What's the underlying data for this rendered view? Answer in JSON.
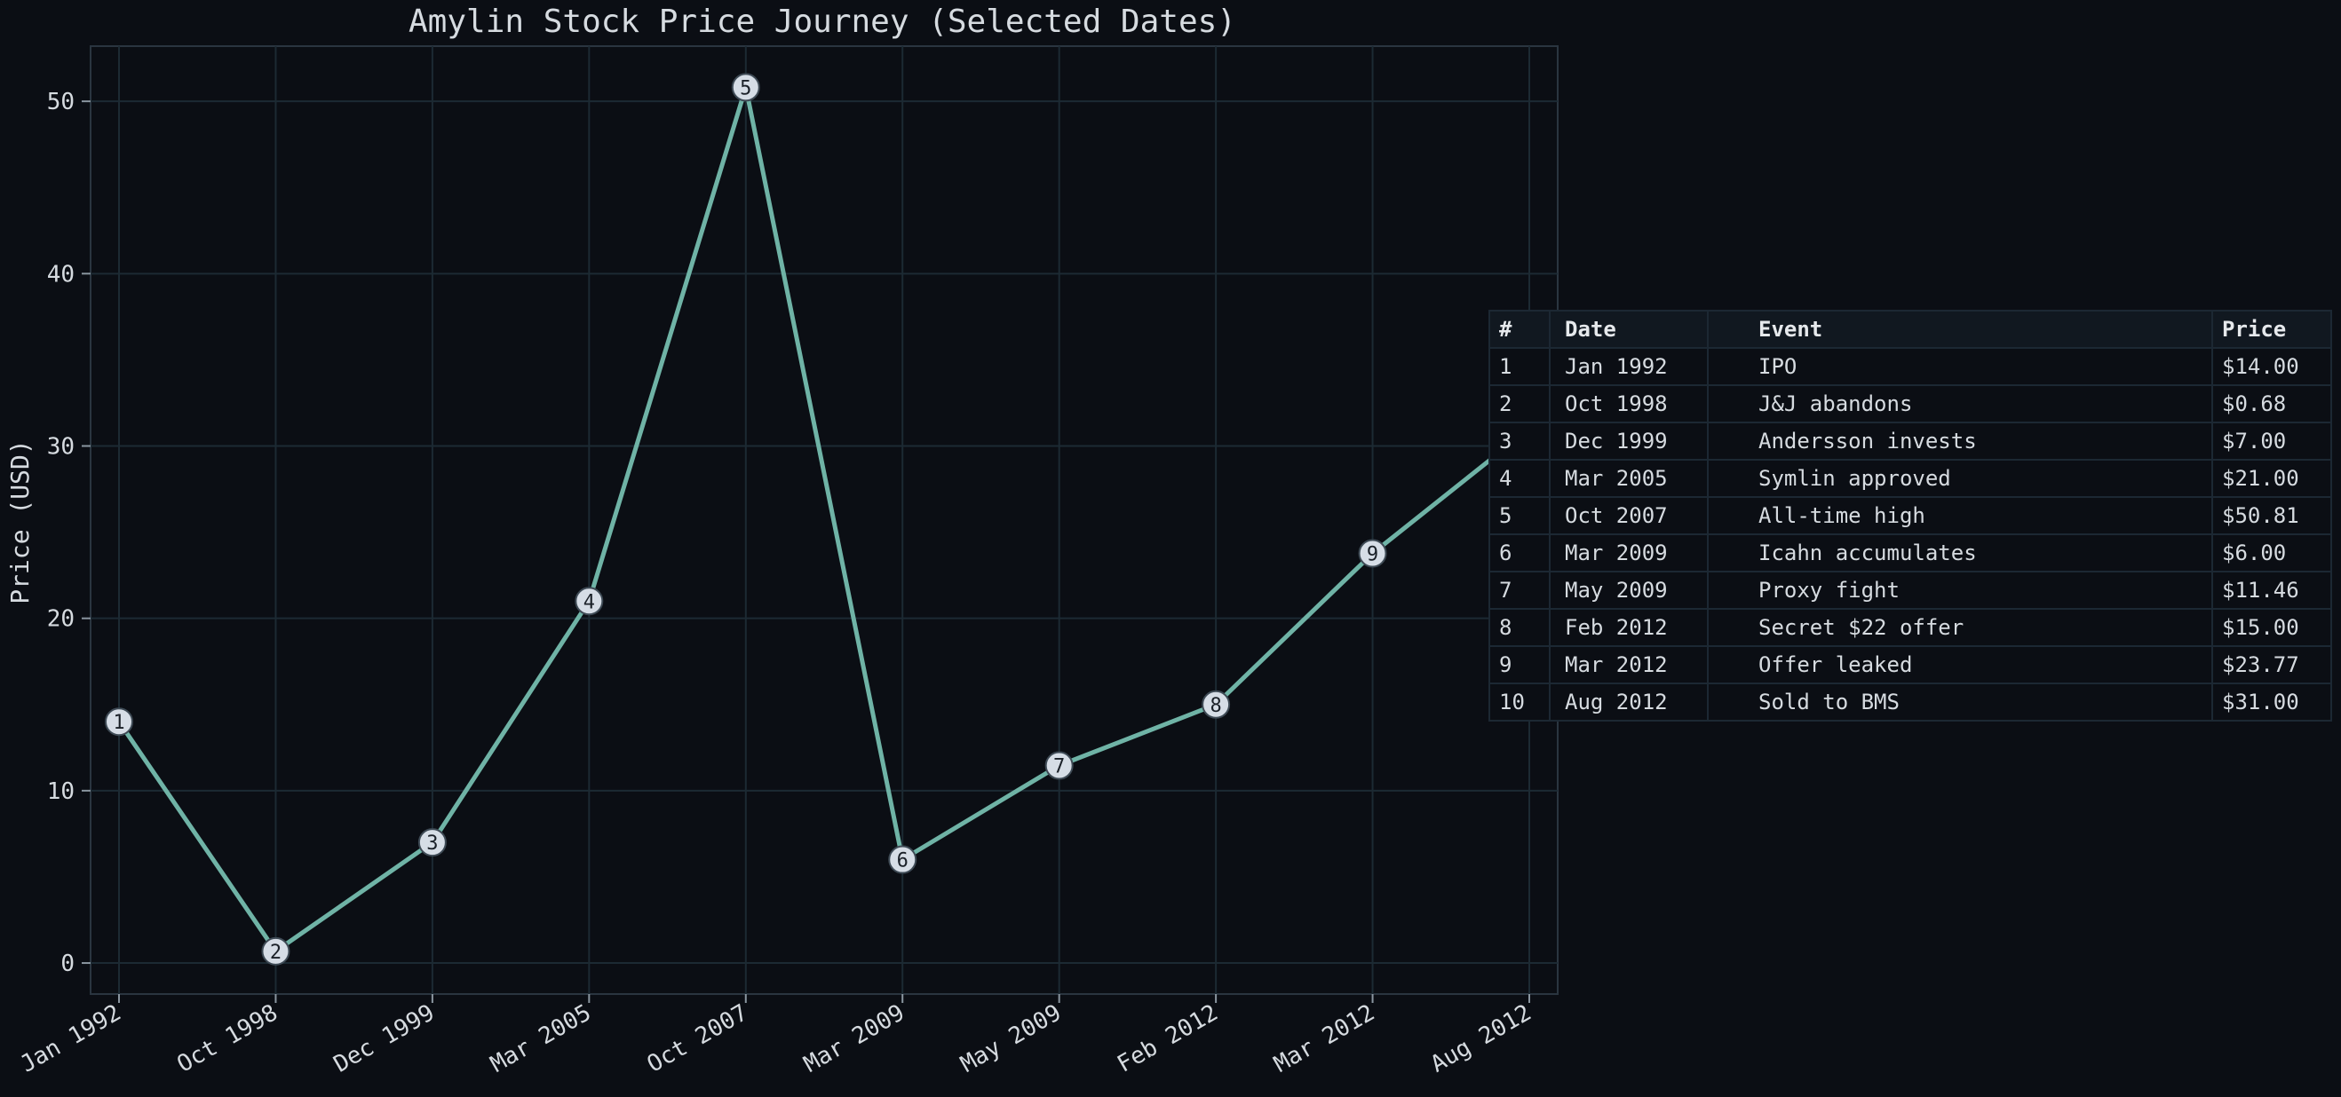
{
  "chart_data": {
    "type": "line",
    "title": "Amylin Stock Price Journey (Selected Dates)",
    "xlabel": "",
    "ylabel": "Price (USD)",
    "categories": [
      "Jan 1992",
      "Oct 1998",
      "Dec 1999",
      "Mar 2005",
      "Oct 2007",
      "Mar 2009",
      "May 2009",
      "Feb 2012",
      "Mar 2012",
      "Aug 2012"
    ],
    "values": [
      14.0,
      0.68,
      7.0,
      21.0,
      50.81,
      6.0,
      11.46,
      15.0,
      23.77,
      31.0
    ],
    "point_labels": [
      "1",
      "2",
      "3",
      "4",
      "5",
      "6",
      "7",
      "8",
      "9",
      "10"
    ],
    "ylim": [
      -1.8,
      53.2
    ],
    "yticks": [
      0,
      10,
      20,
      30,
      40,
      50
    ],
    "grid": true,
    "line_color": "#6fb3a6",
    "marker_fill": "#d6dde6",
    "grid_color": "#1c2a33"
  },
  "table": {
    "headers": [
      "#",
      "Date",
      "Event",
      "Price"
    ],
    "rows": [
      [
        "1",
        "Jan 1992",
        "IPO",
        "$14.00"
      ],
      [
        "2",
        "Oct 1998",
        "J&J abandons",
        "$0.68"
      ],
      [
        "3",
        "Dec 1999",
        "Andersson invests",
        "$7.00"
      ],
      [
        "4",
        "Mar 2005",
        "Symlin approved",
        "$21.00"
      ],
      [
        "5",
        "Oct 2007",
        "All-time high",
        "$50.81"
      ],
      [
        "6",
        "Mar 2009",
        "Icahn accumulates",
        "$6.00"
      ],
      [
        "7",
        "May 2009",
        "Proxy fight",
        "$11.46"
      ],
      [
        "8",
        "Feb 2012",
        "Secret $22 offer",
        "$15.00"
      ],
      [
        "9",
        "Mar 2012",
        "Offer leaked",
        "$23.77"
      ],
      [
        "10",
        "Aug 2012",
        "Sold to BMS",
        "$31.00"
      ]
    ]
  },
  "colors": {
    "background": "#0b0e14",
    "text": "#d6dbe0",
    "axis": "#2a3540"
  }
}
